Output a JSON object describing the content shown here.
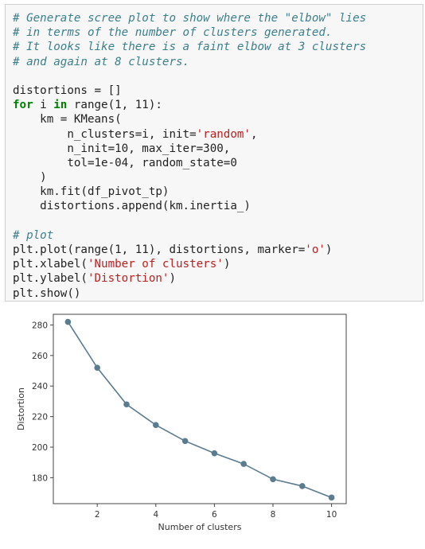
{
  "code_cell": {
    "lines": [
      [
        {
          "t": "# Generate scree plot to show where the \"elbow\" lies",
          "c": "cm"
        }
      ],
      [
        {
          "t": "# in terms of the number of clusters generated.",
          "c": "cm"
        }
      ],
      [
        {
          "t": "# It looks like there is a faint elbow at 3 clusters",
          "c": "cm"
        }
      ],
      [
        {
          "t": "# and again at 8 clusters.",
          "c": "cm"
        }
      ],
      [],
      [
        {
          "t": "distortions = []",
          "c": ""
        }
      ],
      [
        {
          "t": "for",
          "c": "kw"
        },
        {
          "t": " i ",
          "c": ""
        },
        {
          "t": "in",
          "c": "kw"
        },
        {
          "t": " range(1, 11):",
          "c": ""
        }
      ],
      [
        {
          "t": "    km = KMeans(",
          "c": ""
        }
      ],
      [
        {
          "t": "        n_clusters=i, init=",
          "c": ""
        },
        {
          "t": "'random'",
          "c": "st"
        },
        {
          "t": ",",
          "c": ""
        }
      ],
      [
        {
          "t": "        n_init=10, max_iter=300,",
          "c": ""
        }
      ],
      [
        {
          "t": "        tol=1e-04, random_state=0",
          "c": ""
        }
      ],
      [
        {
          "t": "    )",
          "c": ""
        }
      ],
      [
        {
          "t": "    km.fit(df_pivot_tp)",
          "c": ""
        }
      ],
      [
        {
          "t": "    distortions.append(km.inertia_)",
          "c": ""
        }
      ],
      [],
      [
        {
          "t": "# plot",
          "c": "cm"
        }
      ],
      [
        {
          "t": "plt.plot(range(1, 11), distortions, marker=",
          "c": ""
        },
        {
          "t": "'o'",
          "c": "st"
        },
        {
          "t": ")",
          "c": ""
        }
      ],
      [
        {
          "t": "plt.xlabel(",
          "c": ""
        },
        {
          "t": "'Number of clusters'",
          "c": "st"
        },
        {
          "t": ")",
          "c": ""
        }
      ],
      [
        {
          "t": "plt.ylabel(",
          "c": ""
        },
        {
          "t": "'Distortion'",
          "c": "st"
        },
        {
          "t": ")",
          "c": ""
        }
      ],
      [
        {
          "t": "plt.show()",
          "c": ""
        }
      ]
    ]
  },
  "chart_data": {
    "type": "line",
    "title": "",
    "xlabel": "Number of clusters",
    "ylabel": "Distortion",
    "x": [
      1,
      2,
      3,
      4,
      5,
      6,
      7,
      8,
      9,
      10
    ],
    "series": [
      {
        "values": [
          282,
          252,
          228,
          214.5,
          204,
          196,
          189,
          179,
          174.5,
          167
        ],
        "color": "#5b7c8f",
        "marker": "o"
      }
    ],
    "xlim": [
      0.5,
      10.5
    ],
    "ylim": [
      163,
      287
    ],
    "xticks": [
      2,
      4,
      6,
      8,
      10
    ],
    "yticks": [
      180,
      200,
      220,
      240,
      260,
      280
    ],
    "grid": false,
    "legend": "none"
  }
}
